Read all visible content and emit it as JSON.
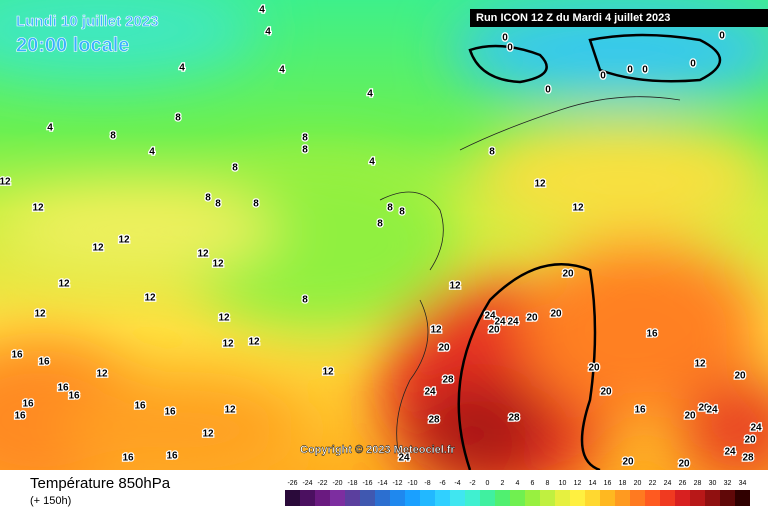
{
  "header": {
    "date": "Lundi 10 juillet 2023",
    "time": "20:00 locale",
    "run": "Run ICON 12 Z du Mardi 4 juillet 2023"
  },
  "copyright": "Copyright © 2023 Meteociel.fr",
  "footer": {
    "title": "Température 850hPa",
    "lead": "(+ 150h)"
  },
  "colorbar": {
    "ticks": [
      -26,
      -24,
      -22,
      -20,
      -18,
      -16,
      -14,
      -12,
      -10,
      -8,
      -6,
      -4,
      -2,
      0,
      2,
      4,
      6,
      8,
      10,
      12,
      14,
      16,
      18,
      20,
      22,
      24,
      26,
      28,
      30,
      32,
      34
    ],
    "colors": [
      "#2a0a3a",
      "#4b1060",
      "#6a1a80",
      "#7d2ea0",
      "#5b3f9e",
      "#4058b0",
      "#2c6fd0",
      "#1f88ee",
      "#1aa0ff",
      "#22b8ff",
      "#30d0ff",
      "#40e6f0",
      "#40f0d0",
      "#40f0a0",
      "#50f070",
      "#70f050",
      "#98f040",
      "#c0f040",
      "#e6f040",
      "#fff040",
      "#ffd830",
      "#ffb820",
      "#ff9a20",
      "#ff7a20",
      "#ff5a20",
      "#f03a20",
      "#d82020",
      "#b81818",
      "#901010",
      "#600808",
      "#300000"
    ]
  },
  "contour_labels": [
    4,
    4,
    4,
    4,
    4,
    4,
    4,
    4,
    0,
    0,
    0,
    0,
    0,
    0,
    0,
    0,
    8,
    8,
    8,
    8,
    8,
    8,
    8,
    8,
    8,
    8,
    8,
    8,
    8,
    12,
    12,
    12,
    12,
    12,
    12,
    12,
    12,
    12,
    12,
    12,
    12,
    12,
    12,
    12,
    12,
    12,
    12,
    12,
    12,
    12,
    16,
    16,
    16,
    16,
    16,
    16,
    16,
    16,
    16,
    16,
    16,
    16,
    20,
    20,
    20,
    20,
    20,
    20,
    20,
    20,
    20,
    20,
    20,
    20,
    20,
    24,
    24,
    24,
    24,
    24,
    24,
    24,
    24,
    28,
    28,
    28,
    28
  ]
}
